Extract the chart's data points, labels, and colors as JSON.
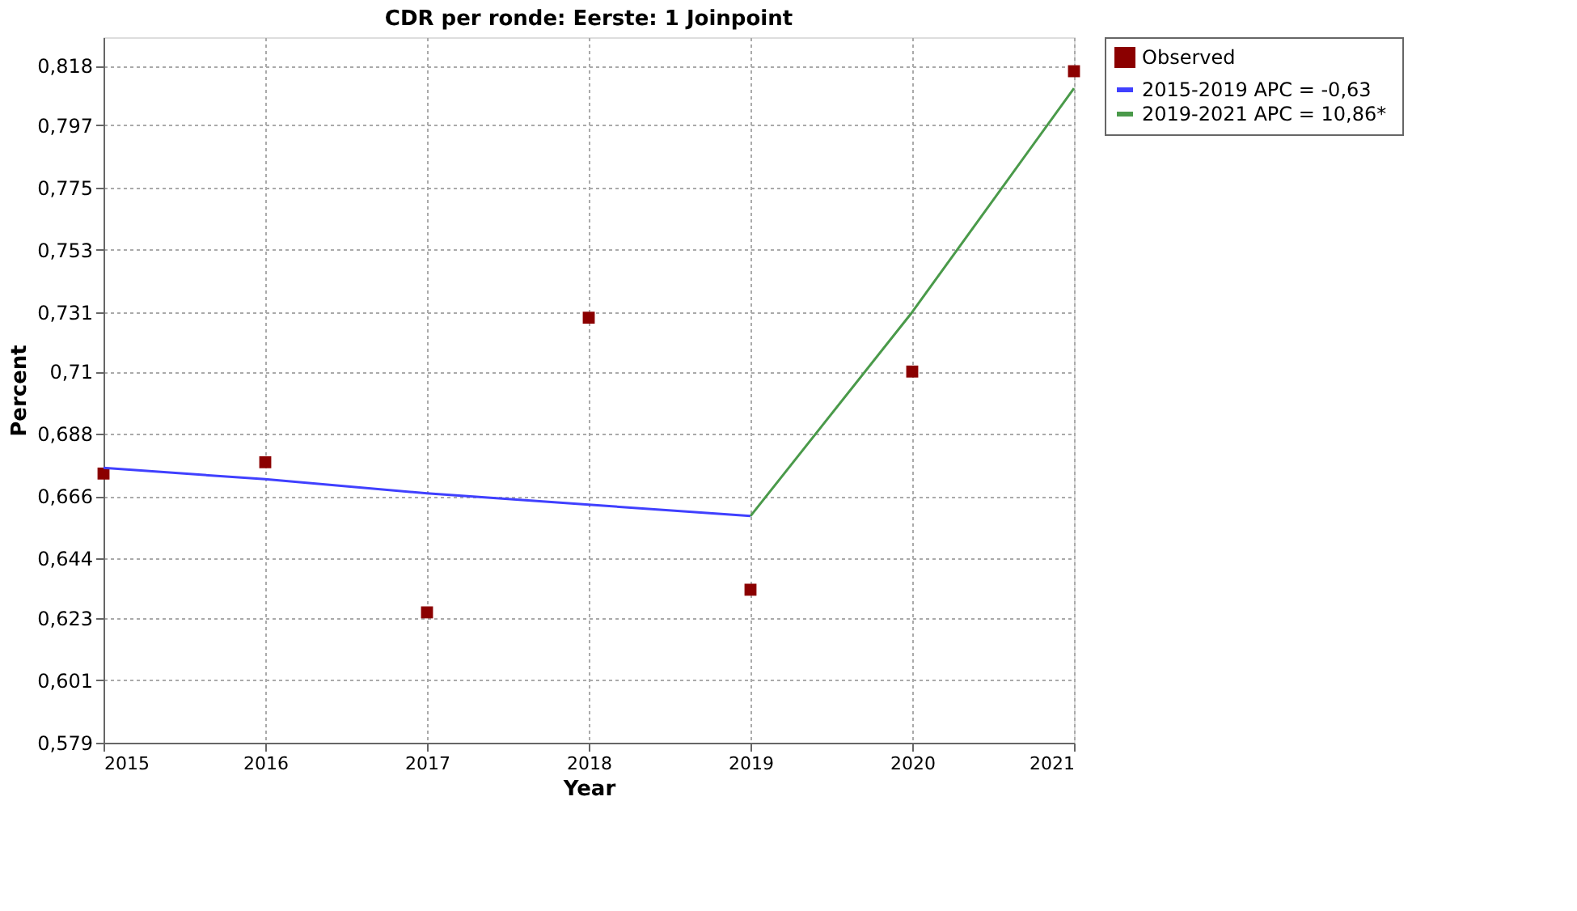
{
  "chart_data": {
    "type": "scatter",
    "title": "CDR per ronde: Eerste: 1 Joinpoint",
    "xlabel": "Year",
    "ylabel": "Percent",
    "xlim": [
      2015,
      2021
    ],
    "xticks": [
      2015,
      2016,
      2017,
      2018,
      2019,
      2020,
      2021
    ],
    "ylim": [
      0.579,
      0.828
    ],
    "yticks": [
      {
        "value": 0.579,
        "label": "0,579"
      },
      {
        "value": 0.601,
        "label": "0,601"
      },
      {
        "value": 0.623,
        "label": "0,623"
      },
      {
        "value": 0.644,
        "label": "0,644"
      },
      {
        "value": 0.666,
        "label": "0,666"
      },
      {
        "value": 0.688,
        "label": "0,688"
      },
      {
        "value": 0.71,
        "label": "0,71"
      },
      {
        "value": 0.731,
        "label": "0,731"
      },
      {
        "value": 0.753,
        "label": "0,753"
      },
      {
        "value": 0.775,
        "label": "0,775"
      },
      {
        "value": 0.797,
        "label": "0,797"
      },
      {
        "value": 0.818,
        "label": "0,818"
      }
    ],
    "grid": true,
    "legend": "top right",
    "series": [
      {
        "name": "Observed",
        "marker": "square",
        "color": "#8b0000",
        "x": [
          2015,
          2016,
          2017,
          2018,
          2019,
          2020,
          2021
        ],
        "values": [
          0.674,
          0.678,
          0.625,
          0.729,
          0.633,
          0.71,
          0.816
        ]
      },
      {
        "name": "2015-2019 APC  = -0,63",
        "type": "line",
        "color": "#4040ff",
        "x": [
          2015,
          2016,
          2017,
          2018,
          2019
        ],
        "values": [
          0.676,
          0.672,
          0.667,
          0.663,
          0.659
        ]
      },
      {
        "name": "2019-2021 APC  = 10,86*",
        "type": "line",
        "color": "#4a9a4a",
        "x": [
          2019,
          2020,
          2021
        ],
        "values": [
          0.659,
          0.731,
          0.81
        ]
      }
    ]
  }
}
